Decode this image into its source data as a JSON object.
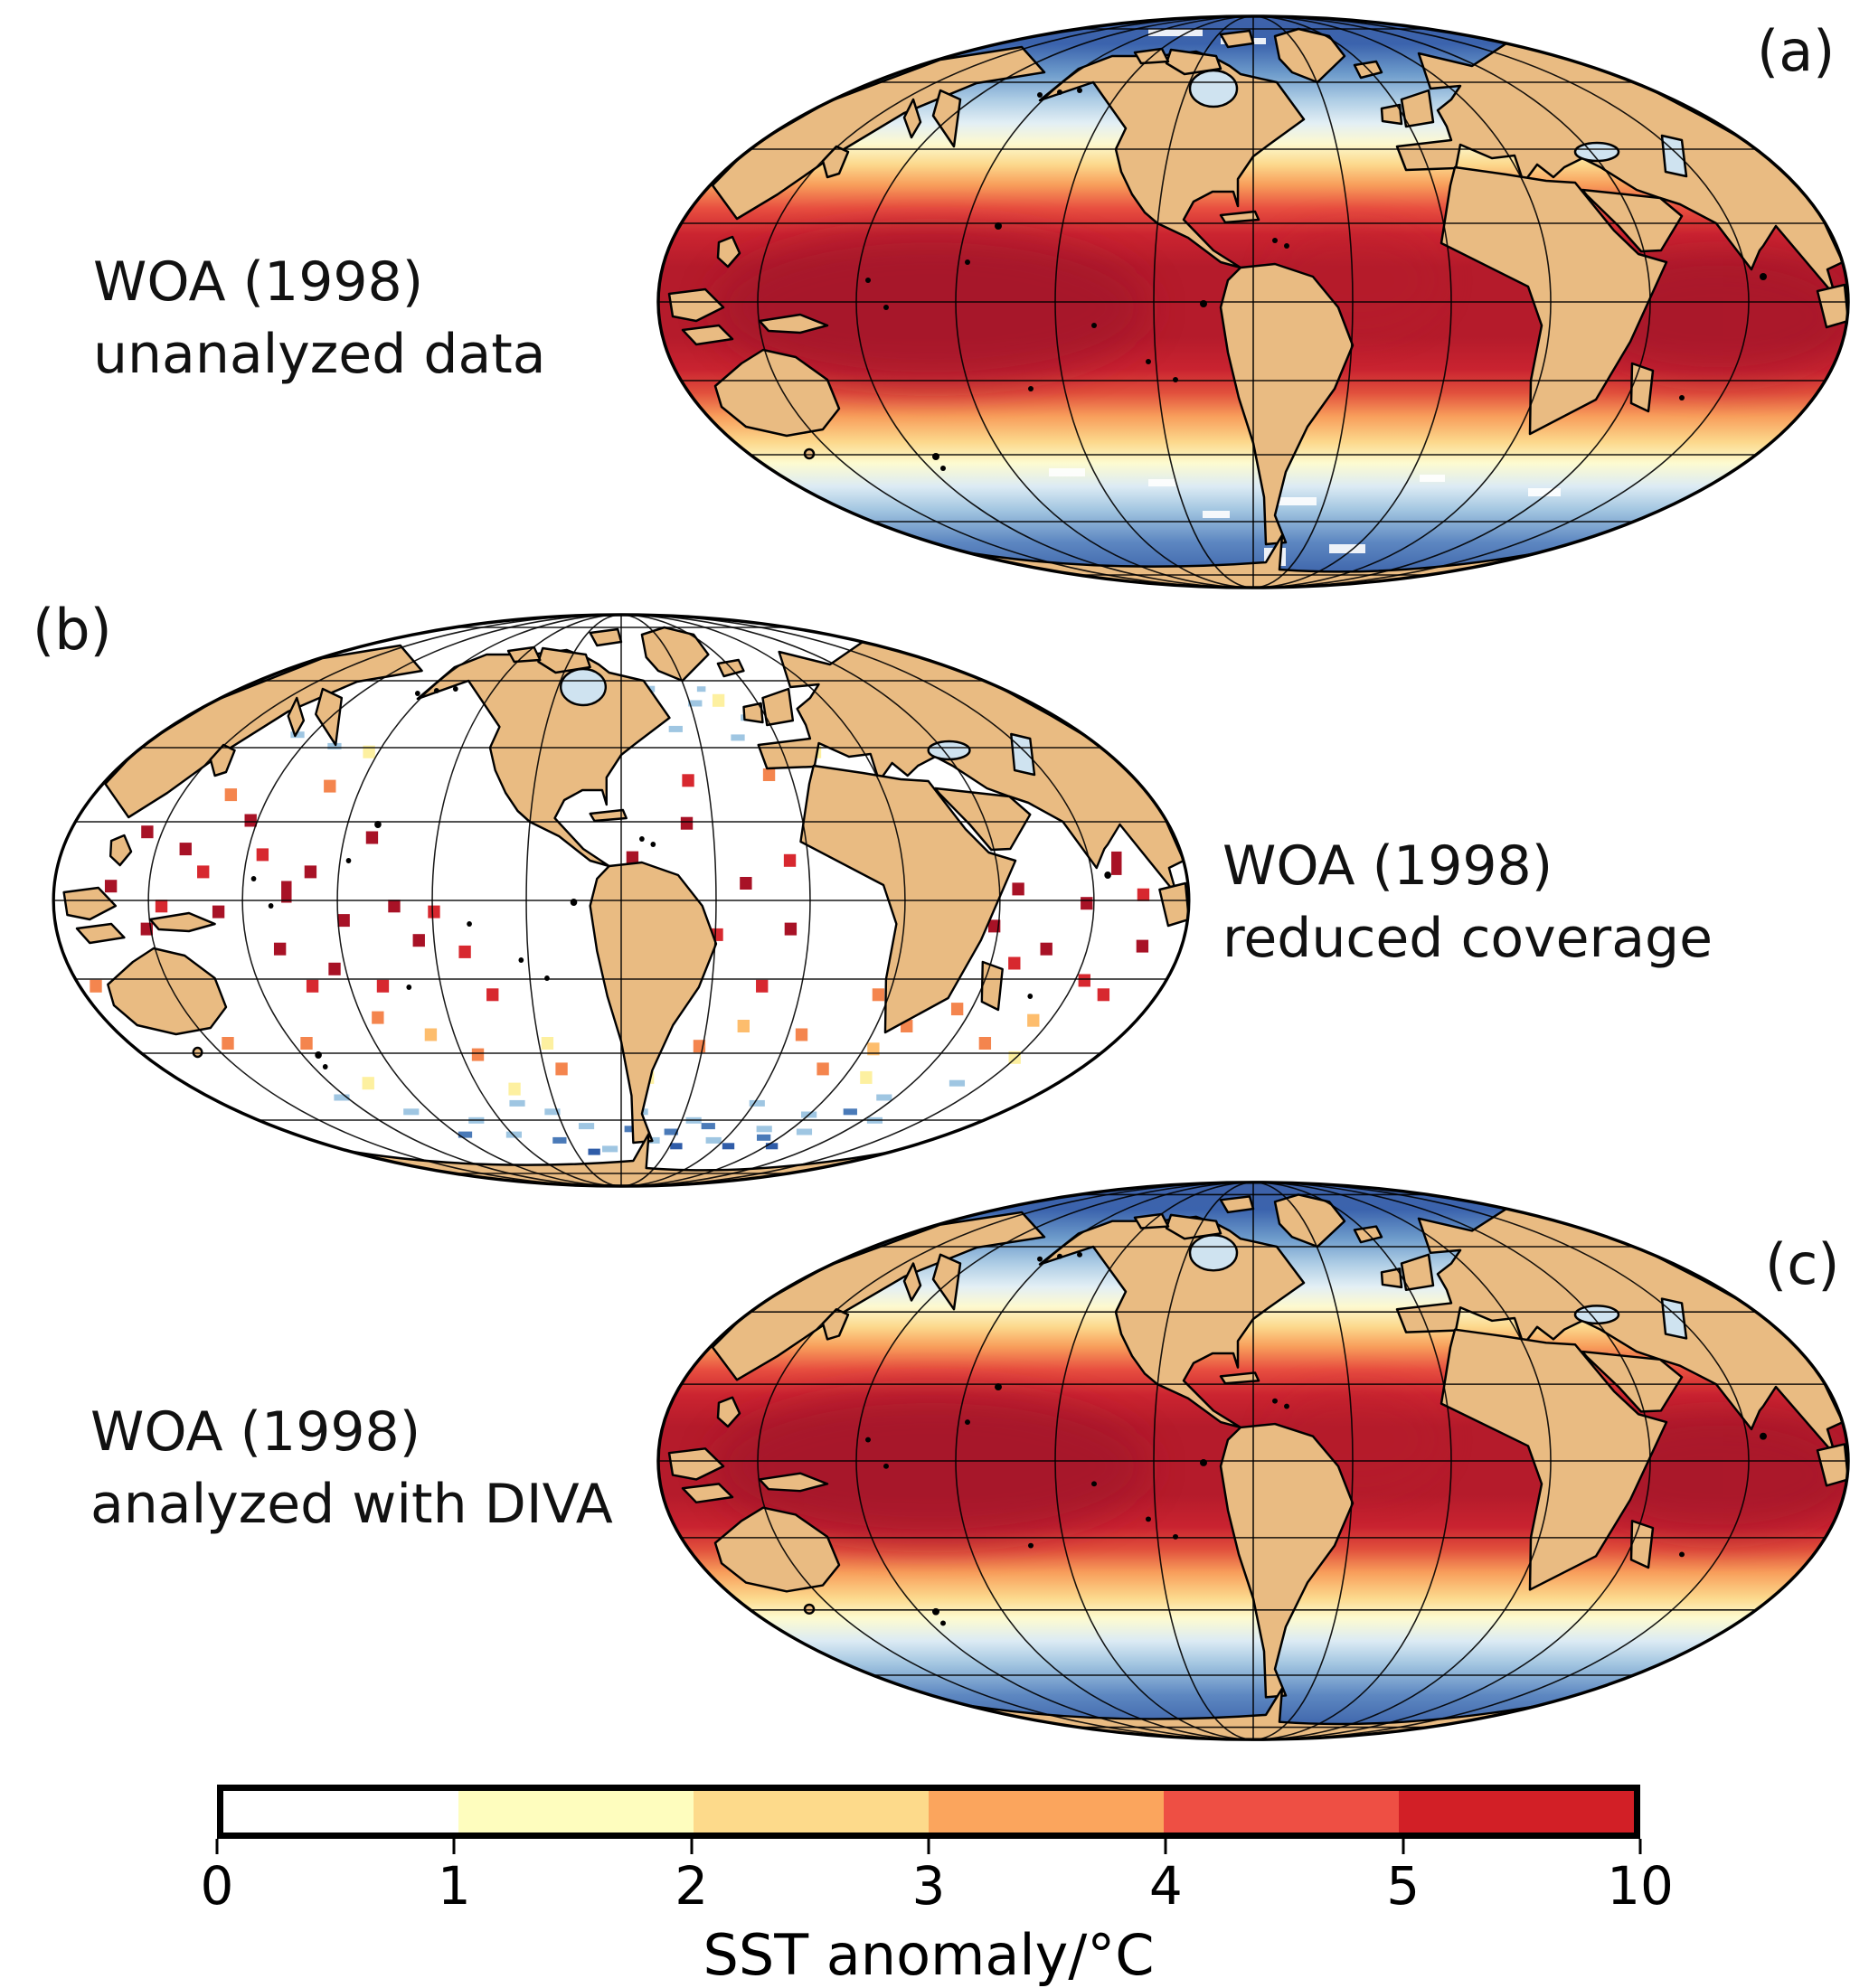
{
  "panels": {
    "a": {
      "tag": "(a)",
      "title_lines": [
        "WOA (1998)",
        "unanalyzed data"
      ]
    },
    "b": {
      "tag": "(b)",
      "title_lines": [
        "WOA (1998)",
        "reduced coverage"
      ]
    },
    "c": {
      "tag": "(c)",
      "title_lines": [
        "WOA (1998)",
        "analyzed with DIVA"
      ]
    }
  },
  "colorbar": {
    "label": "SST anomaly/°C",
    "ticks": [
      "0",
      "1",
      "2",
      "3",
      "4",
      "5",
      "10"
    ],
    "segment_colors": [
      "#ffffff",
      "#fefdbe",
      "#fdda8b",
      "#fba55d",
      "#ee4f44",
      "#d21f26"
    ]
  },
  "colors": {
    "land": "#e9bb82",
    "coastline": "#000000",
    "graticule": "#000000",
    "empty_ocean": "#ffffff",
    "inland_water": "#cfe3f0",
    "tropic_dark_red": "#b51b2b",
    "red": "#cb2430",
    "orange": "#f89e5b",
    "pale_yellow": "#fdfbd0",
    "light_blue": "#a3c6e1",
    "polar_blue": "#3b63ad"
  },
  "scatter_palette": {
    "dr": "#a81226",
    "r": "#d7282f",
    "o": "#f4854e",
    "lo": "#fdbd6d",
    "y": "#fdf0a0",
    "lb": "#9fc6e2",
    "b": "#4a7ab8",
    "db": "#2f5ca8"
  },
  "scatter_points": [
    [
      -0.9,
      -0.05,
      "dr"
    ],
    [
      -0.84,
      0.1,
      "dr"
    ],
    [
      -0.78,
      -0.18,
      "dr"
    ],
    [
      -0.71,
      0.04,
      "dr"
    ],
    [
      -0.68,
      -0.28,
      "dr"
    ],
    [
      -0.61,
      0.17,
      "dr"
    ],
    [
      -0.55,
      -0.1,
      "dr"
    ],
    [
      -0.49,
      0.07,
      "dr"
    ],
    [
      -0.45,
      -0.22,
      "dr"
    ],
    [
      -0.4,
      0.02,
      "dr"
    ],
    [
      -0.86,
      -0.24,
      "dr"
    ],
    [
      -0.59,
      -0.03,
      "dr",
      12,
      24
    ],
    [
      -0.52,
      0.24,
      "dr"
    ],
    [
      -0.36,
      0.14,
      "dr"
    ],
    [
      0.02,
      -0.15,
      "dr"
    ],
    [
      0.12,
      -0.27,
      "dr"
    ],
    [
      0.22,
      -0.06,
      "dr"
    ],
    [
      0.3,
      0.1,
      "dr"
    ],
    [
      0.66,
      0.09,
      "dr"
    ],
    [
      0.7,
      -0.04,
      "dr"
    ],
    [
      0.82,
      0.01,
      "dr"
    ],
    [
      0.88,
      -0.13,
      "dr",
      12,
      26
    ],
    [
      0.93,
      0.16,
      "dr"
    ],
    [
      0.76,
      0.17,
      "dr"
    ],
    [
      -0.93,
      0.12,
      "dr"
    ],
    [
      -0.81,
      0.02,
      "r"
    ],
    [
      -0.74,
      -0.1,
      "r"
    ],
    [
      -0.64,
      -0.16,
      "r"
    ],
    [
      -0.57,
      0.3,
      "r"
    ],
    [
      -0.44,
      0.3,
      "r"
    ],
    [
      -0.33,
      0.04,
      "r"
    ],
    [
      -0.28,
      0.18,
      "r"
    ],
    [
      0.06,
      0.04,
      "r"
    ],
    [
      0.17,
      0.12,
      "r"
    ],
    [
      0.26,
      0.3,
      "r"
    ],
    [
      0.1,
      0.3,
      "r"
    ],
    [
      0.3,
      -0.14,
      "r"
    ],
    [
      0.59,
      -0.16,
      "r"
    ],
    [
      0.71,
      0.22,
      "r"
    ],
    [
      0.85,
      0.28,
      "r"
    ],
    [
      0.92,
      -0.02,
      "r"
    ],
    [
      0.9,
      0.33,
      "r"
    ],
    [
      -0.24,
      0.33,
      "r"
    ],
    [
      0.04,
      0.44,
      "r"
    ],
    [
      0.13,
      -0.42,
      "r"
    ],
    [
      -0.8,
      0.5,
      "o"
    ],
    [
      -0.64,
      0.5,
      "o"
    ],
    [
      -0.47,
      0.41,
      "o"
    ],
    [
      -0.3,
      0.54,
      "o"
    ],
    [
      0.16,
      0.51,
      "o"
    ],
    [
      0.36,
      0.47,
      "o"
    ],
    [
      0.56,
      0.44,
      "o"
    ],
    [
      0.74,
      0.5,
      "o"
    ],
    [
      -0.13,
      0.59,
      "o"
    ],
    [
      0.44,
      0.59,
      "o"
    ],
    [
      -0.97,
      0.3,
      "o"
    ],
    [
      0.29,
      -0.44,
      "o"
    ],
    [
      -0.56,
      -0.4,
      "o"
    ],
    [
      -0.74,
      -0.37,
      "o"
    ],
    [
      0.48,
      0.33,
      "o"
    ],
    [
      0.64,
      0.38,
      "o"
    ],
    [
      -0.88,
      0.42,
      "lo"
    ],
    [
      -0.38,
      0.47,
      "lo"
    ],
    [
      0.02,
      0.55,
      "lo"
    ],
    [
      0.52,
      0.52,
      "lo"
    ],
    [
      0.8,
      0.42,
      "lo"
    ],
    [
      -0.2,
      -0.47,
      "lo"
    ],
    [
      0.24,
      0.44,
      "lo"
    ],
    [
      -0.88,
      -0.44,
      "y"
    ],
    [
      -0.25,
      0.66,
      "y"
    ],
    [
      0.06,
      0.62,
      "y"
    ],
    [
      0.55,
      0.62,
      "y"
    ],
    [
      0.83,
      0.55,
      "y"
    ],
    [
      -0.58,
      0.64,
      "y"
    ],
    [
      0.4,
      -0.52,
      "y"
    ],
    [
      -0.52,
      -0.52,
      "y"
    ],
    [
      0.24,
      -0.7,
      "y"
    ],
    [
      -0.15,
      0.5,
      "y"
    ],
    [
      -0.55,
      0.74,
      "lb",
      18,
      7
    ],
    [
      -0.4,
      0.77,
      "lb",
      18,
      7
    ],
    [
      -0.26,
      0.71,
      "lb",
      18,
      7
    ],
    [
      -0.1,
      0.79,
      "lb",
      18,
      7
    ],
    [
      0.05,
      0.74,
      "lb",
      18,
      7
    ],
    [
      0.2,
      0.77,
      "lb",
      18,
      7
    ],
    [
      0.34,
      0.71,
      "lb",
      18,
      7
    ],
    [
      0.5,
      0.75,
      "lb",
      18,
      7
    ],
    [
      0.64,
      0.69,
      "lb",
      18,
      7
    ],
    [
      0.77,
      0.64,
      "lb",
      18,
      7
    ],
    [
      -0.68,
      0.69,
      "lb",
      18,
      7
    ],
    [
      0.1,
      0.84,
      "lb",
      18,
      7
    ],
    [
      0.3,
      0.84,
      "lb",
      18,
      7
    ],
    [
      -0.04,
      0.87,
      "lb",
      18,
      7
    ],
    [
      0.55,
      0.81,
      "lb",
      18,
      7
    ],
    [
      0.7,
      0.77,
      "lb",
      18,
      7
    ],
    [
      0.12,
      -0.6,
      "lb",
      16,
      7
    ],
    [
      0.18,
      -0.69,
      "lb",
      16,
      7
    ],
    [
      0.25,
      -0.57,
      "lb",
      16,
      7
    ],
    [
      0.07,
      -0.74,
      "lb",
      16,
      7
    ],
    [
      0.29,
      -0.64,
      "lb",
      16,
      7
    ],
    [
      -0.6,
      -0.54,
      "lb",
      16,
      7
    ],
    [
      -0.7,
      -0.58,
      "lb",
      16,
      7
    ],
    [
      0.42,
      0.8,
      "lb",
      18,
      7
    ],
    [
      -0.33,
      0.82,
      "lb",
      18,
      7
    ],
    [
      -0.18,
      0.74,
      "lb",
      18,
      7
    ],
    [
      0.16,
      -0.8,
      "lb",
      10,
      6
    ],
    [
      0.1,
      -0.85,
      "lb",
      10,
      6
    ],
    [
      0.21,
      -0.74,
      "lb",
      10,
      6
    ],
    [
      0.15,
      0.81,
      "b",
      16,
      7
    ],
    [
      0.25,
      0.79,
      "b",
      16,
      7
    ],
    [
      0.45,
      0.83,
      "b",
      16,
      7
    ],
    [
      -0.2,
      0.84,
      "b",
      16,
      7
    ],
    [
      0.6,
      0.74,
      "b",
      16,
      7
    ],
    [
      0.03,
      0.8,
      "b",
      16,
      7
    ],
    [
      -0.48,
      0.82,
      "b",
      16,
      7
    ],
    [
      0.19,
      0.86,
      "db",
      14,
      7
    ],
    [
      0.37,
      0.86,
      "db",
      14,
      7
    ],
    [
      -0.1,
      0.88,
      "db",
      14,
      7
    ],
    [
      0.52,
      0.86,
      "db",
      14,
      7
    ]
  ]
}
